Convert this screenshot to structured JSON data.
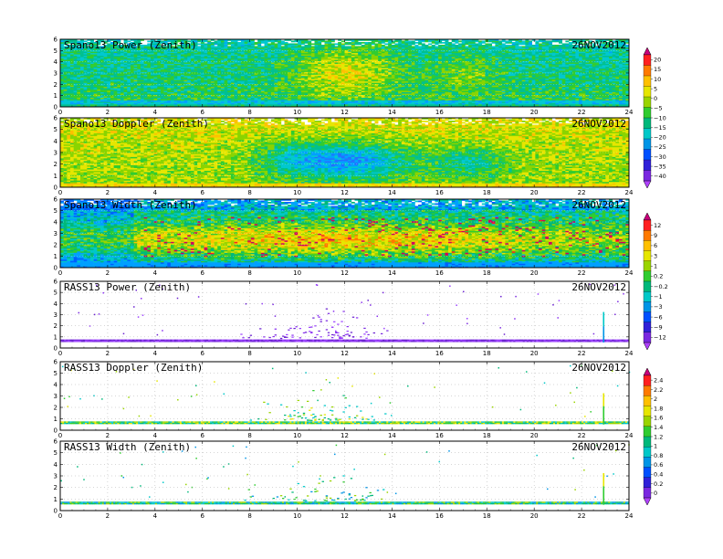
{
  "date": "26NOV2012",
  "x_ticks": [
    "0",
    "2",
    "4",
    "6",
    "8",
    "10",
    "12",
    "14",
    "16",
    "18",
    "20",
    "22",
    "24"
  ],
  "y_ticks": [
    "0",
    "1",
    "2",
    "3",
    "4",
    "5",
    "6"
  ],
  "colorbars": [
    {
      "labels": [
        "20",
        "15",
        "10",
        "5",
        "0",
        "−5",
        "−10",
        "−15",
        "−20",
        "−25",
        "−30",
        "−35",
        "−40"
      ],
      "colors": [
        "#c8007a",
        "#ff2020",
        "#ff7a00",
        "#ffc000",
        "#e6e600",
        "#9ad400",
        "#30cc30",
        "#00b87a",
        "#00c8c8",
        "#0095e6",
        "#0050ff",
        "#3020d8",
        "#7a28e0",
        "#b040ff"
      ]
    },
    {
      "labels": [
        "12",
        "9",
        "6",
        "3",
        "1",
        "0.2",
        "−0.2",
        "−1",
        "−3",
        "−6",
        "−9",
        "−12"
      ],
      "colors": [
        "#c8007a",
        "#ff2020",
        "#ff7a00",
        "#ffc000",
        "#e6e600",
        "#9ad400",
        "#30cc30",
        "#00b87a",
        "#00c8c8",
        "#0095e6",
        "#0050ff",
        "#3020d8",
        "#7a28e0",
        "#b040ff"
      ]
    },
    {
      "labels": [
        "2.4",
        "2.2",
        "2",
        "1.8",
        "1.6",
        "1.4",
        "1.2",
        "1",
        "0.8",
        "0.6",
        "0.4",
        "0.2",
        "0"
      ],
      "colors": [
        "#c8007a",
        "#ff2020",
        "#ff7a00",
        "#ffc000",
        "#e6e600",
        "#9ad400",
        "#30cc30",
        "#00b87a",
        "#00c8c8",
        "#0095e6",
        "#0050ff",
        "#3020d8",
        "#7a28e0",
        "#b040ff"
      ]
    }
  ],
  "chart_data": [
    {
      "type": "heatmap",
      "title": "Spano13 Power (Zenith)",
      "date": "26NOV2012",
      "xlim": [
        0,
        24
      ],
      "ylim": [
        0,
        6
      ]
    },
    {
      "type": "heatmap",
      "title": "Spano13 Doppler (Zenith)",
      "date": "26NOV2012",
      "xlim": [
        0,
        24
      ],
      "ylim": [
        0,
        6
      ]
    },
    {
      "type": "heatmap",
      "title": "Spano13 Width (Zenith)",
      "date": "26NOV2012",
      "xlim": [
        0,
        24
      ],
      "ylim": [
        0,
        6
      ]
    },
    {
      "type": "heatmap",
      "title": "RASS13 Power (Zenith)",
      "date": "26NOV2012",
      "xlim": [
        0,
        24
      ],
      "ylim": [
        0,
        6
      ]
    },
    {
      "type": "heatmap",
      "title": "RASS13 Doppler (Zenith)",
      "date": "26NOV2012",
      "xlim": [
        0,
        24
      ],
      "ylim": [
        0,
        6
      ]
    },
    {
      "type": "heatmap",
      "title": "RASS13 Width (Zenith)",
      "date": "26NOV2012",
      "xlim": [
        0,
        24
      ],
      "ylim": [
        0,
        6
      ]
    }
  ]
}
